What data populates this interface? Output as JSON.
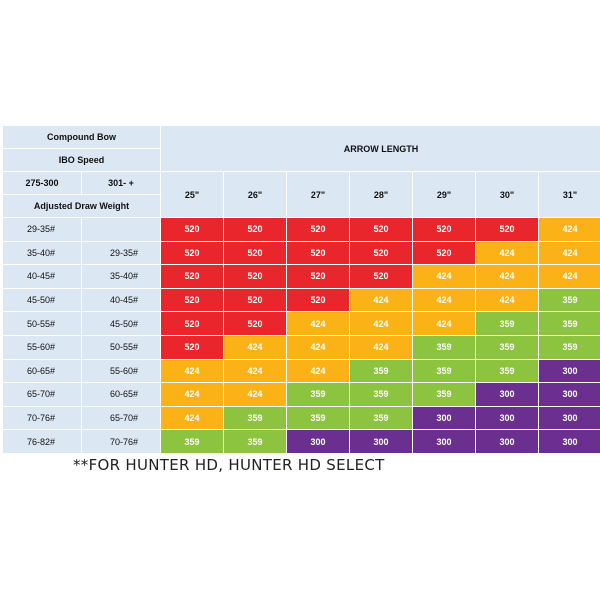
{
  "chart_data": {
    "type": "table",
    "header": {
      "compound_bow": "Compound Bow",
      "ibo_speed": "IBO Speed",
      "speed_low": "275-300",
      "speed_high": "301- +",
      "adjusted_draw_weight": "Adjusted Draw Weight",
      "arrow_length": "ARROW LENGTH"
    },
    "lengths": [
      "25\"",
      "26\"",
      "27\"",
      "28\"",
      "29\"",
      "30\"",
      "31\""
    ],
    "rows": [
      {
        "w1": "29-35#",
        "w2": "",
        "values": [
          "520",
          "520",
          "520",
          "520",
          "520",
          "520",
          "424"
        ]
      },
      {
        "w1": "35-40#",
        "w2": "29-35#",
        "values": [
          "520",
          "520",
          "520",
          "520",
          "520",
          "424",
          "424"
        ]
      },
      {
        "w1": "40-45#",
        "w2": "35-40#",
        "values": [
          "520",
          "520",
          "520",
          "520",
          "424",
          "424",
          "424"
        ]
      },
      {
        "w1": "45-50#",
        "w2": "40-45#",
        "values": [
          "520",
          "520",
          "520",
          "424",
          "424",
          "424",
          "359"
        ]
      },
      {
        "w1": "50-55#",
        "w2": "45-50#",
        "values": [
          "520",
          "520",
          "424",
          "424",
          "424",
          "359",
          "359"
        ]
      },
      {
        "w1": "55-60#",
        "w2": "50-55#",
        "values": [
          "520",
          "424",
          "424",
          "424",
          "359",
          "359",
          "359"
        ]
      },
      {
        "w1": "60-65#",
        "w2": "55-60#",
        "values": [
          "424",
          "424",
          "424",
          "359",
          "359",
          "359",
          "300"
        ]
      },
      {
        "w1": "65-70#",
        "w2": "60-65#",
        "values": [
          "424",
          "424",
          "359",
          "359",
          "359",
          "300",
          "300"
        ]
      },
      {
        "w1": "70-76#",
        "w2": "65-70#",
        "values": [
          "424",
          "359",
          "359",
          "359",
          "300",
          "300",
          "300"
        ]
      },
      {
        "w1": "76-82#",
        "w2": "70-76#",
        "values": [
          "359",
          "359",
          "300",
          "300",
          "300",
          "300",
          "300"
        ]
      }
    ],
    "colors": {
      "520": "#e8262b",
      "424": "#fbb217",
      "359": "#8cc43f",
      "300": "#6a2f8f"
    }
  },
  "footnote": "**FOR HUNTER HD, HUNTER HD SELECT"
}
